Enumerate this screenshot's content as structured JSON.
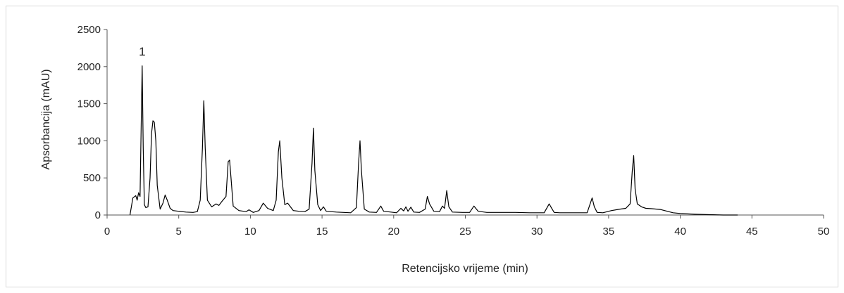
{
  "chart_data": {
    "type": "line",
    "title": "",
    "xlabel": "Retencijsko vrijeme (min)",
    "ylabel": "Apsorbancija (mAU)",
    "xlim": [
      0,
      50
    ],
    "ylim": [
      0,
      2500
    ],
    "xticks": [
      0,
      5,
      10,
      15,
      20,
      25,
      30,
      35,
      40,
      45,
      50
    ],
    "yticks": [
      0,
      500,
      1000,
      1500,
      2000,
      2500
    ],
    "xtick_labels": [
      "0",
      "5",
      "10",
      "15",
      "20",
      "25",
      "30",
      "35",
      "40",
      "45",
      "50"
    ],
    "ytick_labels": [
      "0",
      "500",
      "1000",
      "1500",
      "2000",
      "2500"
    ],
    "grid": false,
    "legend": "none",
    "line_color": "#000000",
    "annotations": [
      {
        "text": "1",
        "x": 2.45,
        "y": 2150
      }
    ],
    "series": [
      {
        "x": [
          1.6,
          1.8,
          2.0,
          2.1,
          2.2,
          2.3,
          2.38,
          2.45,
          2.52,
          2.6,
          2.7,
          2.85,
          3.0,
          3.1,
          3.2,
          3.3,
          3.4,
          3.5,
          3.7,
          3.9,
          4.05,
          4.2,
          4.4,
          4.6,
          5.0,
          5.5,
          6.0,
          6.3,
          6.5,
          6.65,
          6.75,
          6.85,
          7.0,
          7.3,
          7.6,
          7.8,
          8.0,
          8.3,
          8.45,
          8.55,
          8.65,
          8.8,
          9.2,
          9.7,
          9.9,
          10.2,
          10.6,
          10.9,
          11.2,
          11.6,
          11.8,
          11.95,
          12.05,
          12.2,
          12.4,
          12.6,
          13.0,
          13.4,
          13.8,
          14.1,
          14.3,
          14.4,
          14.5,
          14.7,
          14.9,
          15.1,
          15.3,
          15.6,
          16.0,
          16.5,
          17.0,
          17.4,
          17.55,
          17.65,
          17.75,
          17.95,
          18.3,
          18.8,
          19.1,
          19.3,
          19.8,
          20.2,
          20.5,
          20.7,
          20.85,
          21.0,
          21.2,
          21.4,
          21.8,
          22.2,
          22.35,
          22.5,
          22.8,
          23.2,
          23.4,
          23.55,
          23.7,
          23.85,
          24.1,
          24.8,
          25.3,
          25.6,
          25.9,
          26.5,
          27.5,
          28.5,
          29.5,
          30.5,
          30.85,
          31.0,
          31.2,
          31.6,
          32.5,
          33.5,
          33.85,
          34.0,
          34.2,
          34.6,
          35.2,
          35.8,
          36.2,
          36.5,
          36.65,
          36.75,
          36.85,
          37.0,
          37.3,
          37.6,
          38.0,
          38.6,
          39.0,
          39.5,
          40.0,
          40.5,
          41.0,
          42.0,
          43.0,
          44.0
        ],
        "y": [
          0,
          230,
          260,
          200,
          300,
          250,
          1200,
          2010,
          900,
          140,
          100,
          110,
          500,
          1100,
          1270,
          1250,
          1000,
          400,
          80,
          160,
          270,
          200,
          90,
          60,
          50,
          40,
          35,
          45,
          200,
          900,
          1540,
          900,
          200,
          110,
          150,
          130,
          180,
          250,
          720,
          740,
          500,
          120,
          60,
          45,
          70,
          35,
          60,
          160,
          90,
          60,
          200,
          850,
          1000,
          500,
          140,
          160,
          60,
          50,
          45,
          80,
          700,
          1170,
          600,
          140,
          60,
          110,
          50,
          45,
          40,
          35,
          30,
          100,
          700,
          1000,
          600,
          80,
          40,
          35,
          120,
          50,
          40,
          30,
          90,
          55,
          110,
          50,
          105,
          40,
          35,
          80,
          250,
          150,
          50,
          45,
          120,
          90,
          330,
          110,
          40,
          35,
          35,
          120,
          50,
          35,
          35,
          35,
          30,
          30,
          150,
          100,
          35,
          30,
          30,
          30,
          230,
          110,
          35,
          30,
          60,
          80,
          90,
          150,
          600,
          800,
          350,
          150,
          110,
          90,
          85,
          75,
          55,
          30,
          20,
          15,
          10,
          5,
          0,
          0
        ]
      }
    ]
  }
}
